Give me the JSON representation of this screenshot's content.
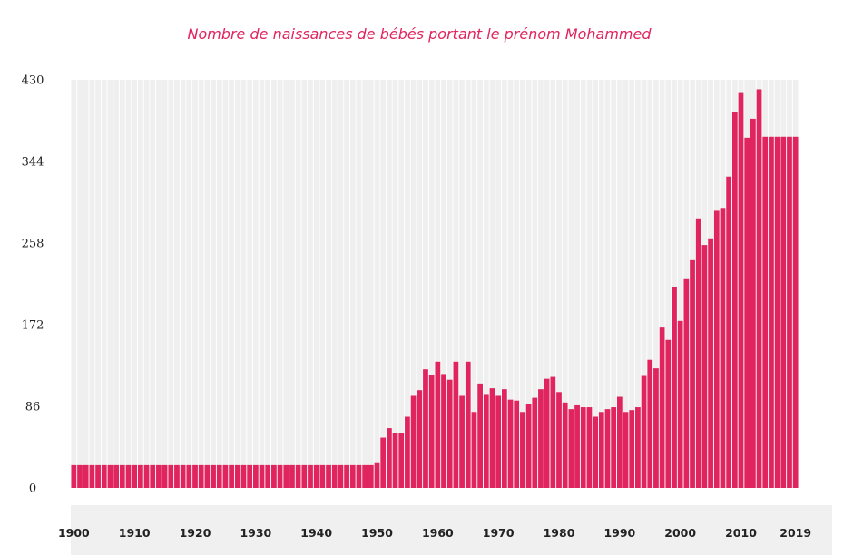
{
  "colors": {
    "accent": "#e0245e",
    "background_bar": "#efefef",
    "axis_band": "#f0f0f0"
  },
  "chart_data": {
    "type": "bar",
    "title": "Nombre de naissances de bébés portant le prénom Mohammed",
    "xlabel": "",
    "ylabel": "",
    "ylim": [
      0,
      430
    ],
    "y_ticks": [
      0,
      86,
      172,
      258,
      344,
      430
    ],
    "x_ticks": [
      "1900",
      "1910",
      "1920",
      "1930",
      "1940",
      "1950",
      "1960",
      "1970",
      "1980",
      "1990",
      "2000",
      "2010",
      "2019"
    ],
    "grid": false,
    "legend": "none",
    "x_start": 1900,
    "x_end": 2019,
    "values": [
      24,
      24,
      24,
      24,
      24,
      24,
      24,
      24,
      24,
      24,
      24,
      24,
      24,
      24,
      24,
      24,
      24,
      24,
      24,
      24,
      24,
      24,
      24,
      24,
      24,
      24,
      24,
      24,
      24,
      24,
      24,
      24,
      24,
      24,
      24,
      24,
      24,
      24,
      24,
      24,
      24,
      24,
      24,
      24,
      24,
      24,
      24,
      24,
      24,
      24,
      27,
      53,
      63,
      58,
      58,
      75,
      97,
      103,
      125,
      119,
      133,
      120,
      114,
      133,
      97,
      133,
      80,
      110,
      98,
      105,
      97,
      104,
      93,
      92,
      80,
      88,
      95,
      104,
      115,
      117,
      101,
      90,
      83,
      87,
      85,
      85,
      75,
      80,
      83,
      85,
      96,
      80,
      82,
      85,
      118,
      135,
      126,
      169,
      156,
      212,
      176,
      220,
      240,
      284,
      256,
      263,
      292,
      295,
      328,
      396,
      417,
      369,
      389,
      420,
      370,
      370,
      370,
      370,
      370,
      370
    ]
  }
}
